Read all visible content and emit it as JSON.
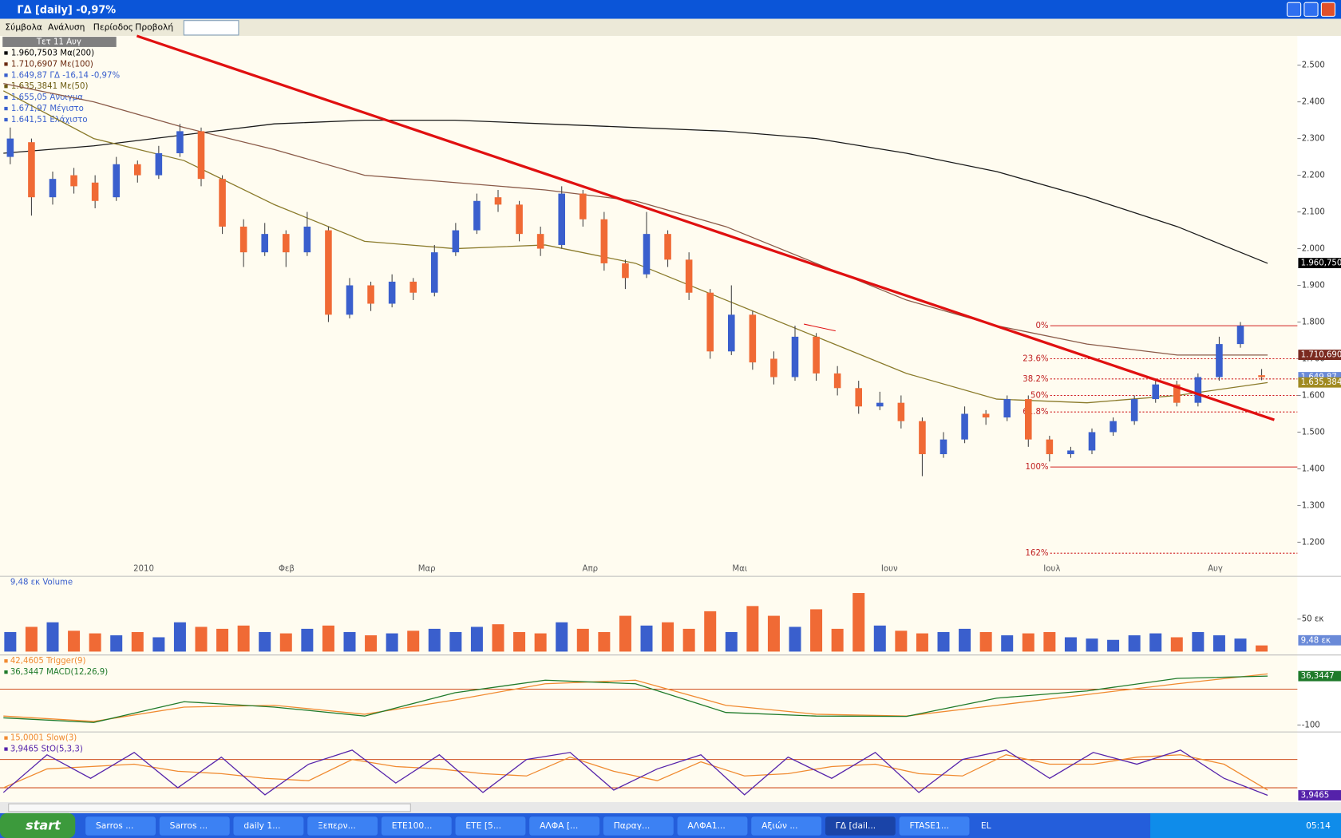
{
  "window": {
    "title": "ΓΔ [daily] -0,97%",
    "menu": [
      "Σύμβολα",
      "Ανάλυση",
      "Περίοδος",
      "Προβολή"
    ],
    "date_box": "Τετ 11 Αυγ"
  },
  "legend": [
    {
      "text": "1.960,7503 Mα(200)",
      "color": "#000000"
    },
    {
      "text": "1.710,6907 Mε(100)",
      "color": "#6b2a10"
    },
    {
      "text": "1.649,87 ΓΔ -16,14 -0,97%",
      "color": "#3a5fcd"
    },
    {
      "text": "1.635,3841 Mε(50)",
      "color": "#6b5a10"
    },
    {
      "text": "1.655,05 Άνοιγμα",
      "color": "#3a5fcd"
    },
    {
      "text": "1.671,97 Μέγιστο",
      "color": "#3a5fcd"
    },
    {
      "text": "1.641,51 Ελάχιστο",
      "color": "#3a5fcd"
    }
  ],
  "price_panel": {
    "type": "candlestick",
    "up_color": "#3a5fcd",
    "down_color": "#f06a35",
    "ylim": [
      1149,
      2575
    ],
    "yticks": [
      {
        "value": 2500,
        "label": "2.500"
      },
      {
        "value": 2400,
        "label": "2.400"
      },
      {
        "value": 2300,
        "label": "2.300"
      },
      {
        "value": 2200,
        "label": "2.200"
      },
      {
        "value": 2100,
        "label": "2.100"
      },
      {
        "value": 2000,
        "label": "2.000"
      },
      {
        "value": 1900,
        "label": "1.900"
      },
      {
        "value": 1800,
        "label": "1.800"
      },
      {
        "value": 1700,
        "label": "1.700"
      },
      {
        "value": 1600,
        "label": "1.600"
      },
      {
        "value": 1500,
        "label": "1.500"
      },
      {
        "value": 1400,
        "label": "1.400"
      },
      {
        "value": 1300,
        "label": "1.300"
      },
      {
        "value": 1200,
        "label": "1.200"
      }
    ],
    "x_labels": [
      "2010",
      "Φεβ",
      "Μαρ",
      "Απρ",
      "Μαι",
      "Ιουν",
      "Ιουλ",
      "Αυγ"
    ],
    "candles": [
      [
        2250,
        2330,
        2230,
        2300
      ],
      [
        2290,
        2300,
        2090,
        2140
      ],
      [
        2140,
        2210,
        2120,
        2190
      ],
      [
        2200,
        2220,
        2150,
        2170
      ],
      [
        2180,
        2200,
        2110,
        2130
      ],
      [
        2140,
        2250,
        2130,
        2230
      ],
      [
        2230,
        2240,
        2180,
        2200
      ],
      [
        2200,
        2280,
        2190,
        2260
      ],
      [
        2260,
        2340,
        2250,
        2320
      ],
      [
        2320,
        2330,
        2170,
        2190
      ],
      [
        2190,
        2200,
        2040,
        2060
      ],
      [
        2060,
        2080,
        1950,
        1990
      ],
      [
        1990,
        2070,
        1980,
        2040
      ],
      [
        2040,
        2050,
        1950,
        1990
      ],
      [
        1990,
        2100,
        1980,
        2060
      ],
      [
        2050,
        2060,
        1800,
        1820
      ],
      [
        1820,
        1920,
        1810,
        1900
      ],
      [
        1900,
        1910,
        1830,
        1850
      ],
      [
        1850,
        1930,
        1840,
        1910
      ],
      [
        1910,
        1920,
        1860,
        1880
      ],
      [
        1880,
        2010,
        1870,
        1990
      ],
      [
        1990,
        2070,
        1980,
        2050
      ],
      [
        2050,
        2150,
        2040,
        2130
      ],
      [
        2140,
        2160,
        2100,
        2120
      ],
      [
        2120,
        2130,
        2020,
        2040
      ],
      [
        2040,
        2060,
        1980,
        2000
      ],
      [
        2010,
        2170,
        2000,
        2150
      ],
      [
        2150,
        2160,
        2060,
        2080
      ],
      [
        2080,
        2100,
        1940,
        1960
      ],
      [
        1960,
        1970,
        1890,
        1920
      ],
      [
        1930,
        2100,
        1920,
        2040
      ],
      [
        2040,
        2050,
        1950,
        1970
      ],
      [
        1970,
        1990,
        1860,
        1880
      ],
      [
        1880,
        1890,
        1700,
        1720
      ],
      [
        1720,
        1900,
        1710,
        1820
      ],
      [
        1820,
        1830,
        1670,
        1690
      ],
      [
        1700,
        1720,
        1630,
        1650
      ],
      [
        1650,
        1790,
        1640,
        1760
      ],
      [
        1760,
        1770,
        1640,
        1660
      ],
      [
        1660,
        1680,
        1600,
        1620
      ],
      [
        1620,
        1640,
        1550,
        1570
      ],
      [
        1570,
        1610,
        1560,
        1580
      ],
      [
        1580,
        1600,
        1510,
        1530
      ],
      [
        1530,
        1540,
        1380,
        1440
      ],
      [
        1440,
        1500,
        1430,
        1480
      ],
      [
        1480,
        1570,
        1470,
        1550
      ],
      [
        1550,
        1560,
        1520,
        1540
      ],
      [
        1540,
        1600,
        1530,
        1590
      ],
      [
        1590,
        1600,
        1460,
        1480
      ],
      [
        1480,
        1490,
        1420,
        1440
      ],
      [
        1440,
        1460,
        1430,
        1450
      ],
      [
        1450,
        1510,
        1440,
        1500
      ],
      [
        1500,
        1540,
        1490,
        1530
      ],
      [
        1530,
        1600,
        1520,
        1590
      ],
      [
        1590,
        1640,
        1580,
        1630
      ],
      [
        1630,
        1640,
        1570,
        1580
      ],
      [
        1580,
        1660,
        1570,
        1650
      ],
      [
        1650,
        1760,
        1640,
        1740
      ],
      [
        1740,
        1800,
        1730,
        1790
      ],
      [
        1655.05,
        1671.97,
        1641.51,
        1649.87
      ]
    ],
    "lines": [
      {
        "color": "#1a1a1a",
        "values": [
          2260,
          2280,
          2310,
          2340,
          2350,
          2350,
          2340,
          2330,
          2320,
          2300,
          2260,
          2210,
          2140,
          2060,
          1960
        ]
      },
      {
        "color": "#8a5a48",
        "values": [
          2450,
          2400,
          2330,
          2270,
          2200,
          2180,
          2160,
          2130,
          2060,
          1960,
          1860,
          1790,
          1740,
          1710,
          1710
        ]
      },
      {
        "color": "#8a7a2a",
        "values": [
          2430,
          2300,
          2240,
          2120,
          2020,
          2000,
          2010,
          1960,
          1860,
          1760,
          1660,
          1590,
          1580,
          1600,
          1635
        ]
      }
    ],
    "fib": [
      {
        "label": "0%",
        "value": 1790
      },
      {
        "label": "23.6%",
        "value": 1700
      },
      {
        "label": "38.2%",
        "value": 1645
      },
      {
        "label": "50%",
        "value": 1600
      },
      {
        "label": "61.8%",
        "value": 1555
      },
      {
        "label": "100%",
        "value": 1405
      },
      {
        "label": "162%",
        "value": 1170
      }
    ],
    "badges": [
      {
        "label": "1.960,750",
        "value": 1960.75,
        "color": "#000000"
      },
      {
        "label": "1.710,690",
        "value": 1710.69,
        "color": "#7a2a20"
      },
      {
        "label": "1.649,87",
        "value": 1649.87,
        "color": "#6a8ad8"
      },
      {
        "label": "1.635,384",
        "value": 1635.384,
        "color": "#a08a20"
      }
    ]
  },
  "volume_panel": {
    "type": "bar",
    "legend": "9,48 εκ Volume",
    "ylim": [
      0,
      113
    ],
    "yticks": [
      {
        "value": 50,
        "label": "50 εκ"
      }
    ],
    "badge": {
      "label": "9,48 εκ",
      "value": 9.48
    },
    "values": [
      30,
      38,
      45,
      32,
      28,
      25,
      30,
      22,
      45,
      38,
      35,
      40,
      30,
      28,
      35,
      40,
      30,
      25,
      28,
      32,
      35,
      30,
      38,
      42,
      30,
      28,
      45,
      35,
      30,
      55,
      40,
      45,
      35,
      62,
      30,
      70,
      55,
      38,
      65,
      35,
      90,
      40,
      32,
      28,
      30,
      35,
      30,
      25,
      28,
      30,
      22,
      20,
      18,
      25,
      28,
      22,
      30,
      25,
      20,
      9.48
    ]
  },
  "macd_panel": {
    "type": "line",
    "ylim": [
      -117,
      88
    ],
    "yticks": [
      -100
    ],
    "ref_lines": [
      0
    ],
    "badge": {
      "label": "36,3447",
      "value": 36.3447
    },
    "series": [
      {
        "name": "42,4605 Trigger(9)",
        "color": "#f08a30",
        "values": [
          -75,
          -90,
          -50,
          -45,
          -70,
          -30,
          15,
          25,
          -45,
          -70,
          -75,
          -45,
          -15,
          15,
          42.4605
        ]
      },
      {
        "name": "36,3447 MACD(12,26,9)",
        "color": "#1f7a2a",
        "values": [
          -80,
          -93,
          -35,
          -50,
          -75,
          -10,
          25,
          15,
          -65,
          -75,
          -76,
          -25,
          -5,
          30,
          36.3447
        ]
      }
    ]
  },
  "stoch_panel": {
    "type": "line",
    "ylim": [
      -5,
      133
    ],
    "ref_lines": [
      20,
      80
    ],
    "badge": {
      "label": "3,9465",
      "value": 3.9465
    },
    "series": [
      {
        "name": "15,0001 Slow(3)",
        "color": "#f08a30",
        "values": [
          20,
          60,
          65,
          70,
          55,
          50,
          40,
          35,
          80,
          65,
          60,
          50,
          45,
          85,
          55,
          35,
          75,
          45,
          50,
          65,
          70,
          50,
          45,
          90,
          70,
          70,
          85,
          90,
          70,
          15.0001
        ]
      },
      {
        "name": "3,9465 StO(5,3,3)",
        "color": "#5522aa",
        "values": [
          10,
          90,
          40,
          95,
          20,
          85,
          5,
          70,
          100,
          30,
          90,
          10,
          80,
          95,
          15,
          60,
          90,
          5,
          85,
          40,
          95,
          10,
          80,
          100,
          40,
          95,
          70,
          100,
          40,
          3.9465
        ]
      }
    ]
  },
  "taskbar": {
    "start": "start",
    "items": [
      "Sarros ...",
      "Sarros ...",
      "daily 1...",
      "Ξεπερν...",
      "ETE100...",
      "ETE [5...",
      "ΑΛΦΑ [...",
      "Παραγ...",
      "ΑΛΦΑ1...",
      "Αξιών ...",
      "ΓΔ [dail...",
      "FTASE1..."
    ],
    "lang": "EL",
    "clock": "05:14"
  }
}
